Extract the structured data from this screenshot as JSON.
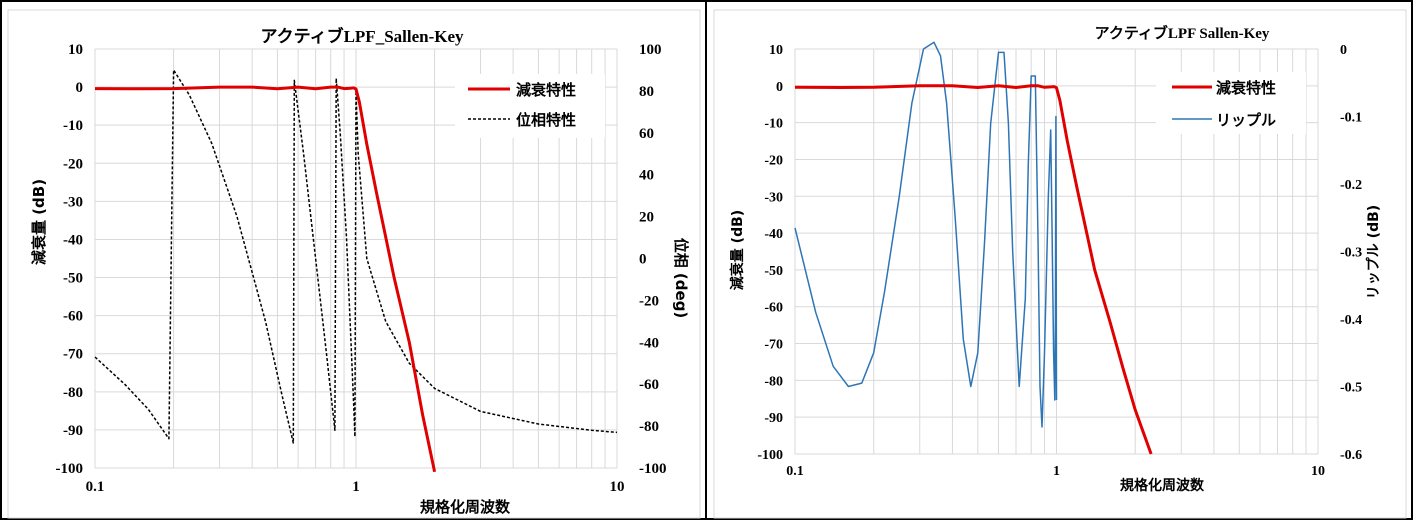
{
  "chart_data": [
    {
      "type": "line",
      "title": "アクティブLPF_Sallen-Key",
      "xlabel": "規格化周波数",
      "ylabel": "減衰量 (dB)",
      "y2label": "位相 (deg)",
      "xscale": "log",
      "xlim": [
        0.1,
        10
      ],
      "ylim": [
        -100,
        10
      ],
      "y2lim": [
        -100,
        100
      ],
      "grid": true,
      "legend_position": "top-right",
      "x_ticks": [
        "0.1",
        "1",
        "10"
      ],
      "y_ticks": [
        "10",
        "0",
        "-10",
        "-20",
        "-30",
        "-40",
        "-50",
        "-60",
        "-70",
        "-80",
        "-90",
        "-100"
      ],
      "y2_ticks": [
        "100",
        "80",
        "60",
        "40",
        "20",
        "0",
        "-20",
        "-40",
        "-60",
        "-80",
        "-100"
      ],
      "series": [
        {
          "name": "減衰特性",
          "axis": "left",
          "color": "#e00000",
          "style": "solid",
          "x": [
            0.1,
            0.15,
            0.2,
            0.3,
            0.4,
            0.5,
            0.6,
            0.7,
            0.8,
            0.85,
            0.9,
            0.95,
            0.98,
            1.0,
            1.03,
            1.1,
            1.2,
            1.4,
            1.6,
            1.8,
            2.0
          ],
          "y": [
            -0.4,
            -0.45,
            -0.4,
            0,
            0,
            -0.45,
            0,
            -0.45,
            0,
            0,
            -0.4,
            -0.3,
            -0.2,
            -0.5,
            -4,
            -15,
            -28,
            -50,
            -67,
            -86,
            -101
          ]
        },
        {
          "name": "位相特性",
          "axis": "right",
          "color": "#000000",
          "style": "dashed",
          "x": [
            0.1,
            0.13,
            0.16,
            0.192,
            0.2,
            0.23,
            0.28,
            0.35,
            0.45,
            0.52,
            0.575,
            0.58,
            0.63,
            0.7,
            0.77,
            0.83,
            0.84,
            0.87,
            0.92,
            0.98,
            0.99,
            1.0,
            1.02,
            1.1,
            1.3,
            1.6,
            2,
            3,
            5,
            8,
            10
          ],
          "y": [
            -47,
            -60,
            -72,
            -86,
            90,
            78,
            55,
            20,
            -30,
            -65,
            -88,
            85,
            50,
            0,
            -45,
            -82,
            86,
            60,
            10,
            -70,
            -85,
            80,
            50,
            0,
            -30,
            -50,
            -62,
            -73,
            -79,
            -82,
            -83
          ]
        }
      ]
    },
    {
      "type": "line",
      "title": "アクティブLPF Sallen-Key",
      "xlabel": "規格化周波数",
      "ylabel": "減衰量 (dB)",
      "y2label": "リップル (dB)",
      "xscale": "log",
      "xlim": [
        0.1,
        10
      ],
      "ylim": [
        -100,
        10
      ],
      "y2lim": [
        -0.6,
        0
      ],
      "grid": true,
      "legend_position": "top-right",
      "x_ticks": [
        "0.1",
        "1",
        "10"
      ],
      "y_ticks": [
        "10",
        "0",
        "-10",
        "-20",
        "-30",
        "-40",
        "-50",
        "-60",
        "-70",
        "-80",
        "-90",
        "-100"
      ],
      "y2_ticks": [
        "0",
        "-0.1",
        "-0.2",
        "-0.3",
        "-0.4",
        "-0.5",
        "-0.6"
      ],
      "series": [
        {
          "name": "減衰特性",
          "axis": "left",
          "color": "#e00000",
          "style": "solid",
          "x": [
            0.1,
            0.15,
            0.2,
            0.3,
            0.4,
            0.5,
            0.6,
            0.7,
            0.8,
            0.85,
            0.9,
            0.95,
            0.98,
            1.0,
            1.03,
            1.1,
            1.2,
            1.4,
            1.6,
            1.8,
            2.0,
            2.3
          ],
          "y": [
            -0.4,
            -0.45,
            -0.4,
            0,
            0,
            -0.45,
            0,
            -0.45,
            0,
            0,
            -0.4,
            -0.3,
            -0.2,
            -0.5,
            -4,
            -15,
            -28,
            -50,
            -64,
            -77,
            -88,
            -100
          ]
        },
        {
          "name": "リップル",
          "axis": "right",
          "color": "#2e75b6",
          "style": "solid",
          "x": [
            0.1,
            0.12,
            0.14,
            0.16,
            0.18,
            0.2,
            0.22,
            0.25,
            0.28,
            0.31,
            0.34,
            0.36,
            0.38,
            0.41,
            0.44,
            0.47,
            0.5,
            0.53,
            0.56,
            0.6,
            0.63,
            0.655,
            0.68,
            0.72,
            0.76,
            0.78,
            0.8,
            0.83,
            0.85,
            0.865,
            0.88,
            0.9,
            0.93,
            0.95,
            0.96,
            0.975,
            0.985,
            0.99,
            0.995,
            1.0
          ],
          "y": [
            -0.265,
            -0.39,
            -0.47,
            -0.5,
            -0.495,
            -0.45,
            -0.36,
            -0.22,
            -0.08,
            0.0,
            0.01,
            -0.01,
            -0.08,
            -0.25,
            -0.43,
            -0.5,
            -0.45,
            -0.29,
            -0.11,
            -0.005,
            -0.005,
            -0.11,
            -0.3,
            -0.5,
            -0.37,
            -0.17,
            -0.04,
            -0.04,
            -0.28,
            -0.5,
            -0.56,
            -0.45,
            -0.22,
            -0.12,
            -0.25,
            -0.45,
            -0.52,
            -0.4,
            -0.1,
            -0.52
          ]
        }
      ]
    }
  ]
}
